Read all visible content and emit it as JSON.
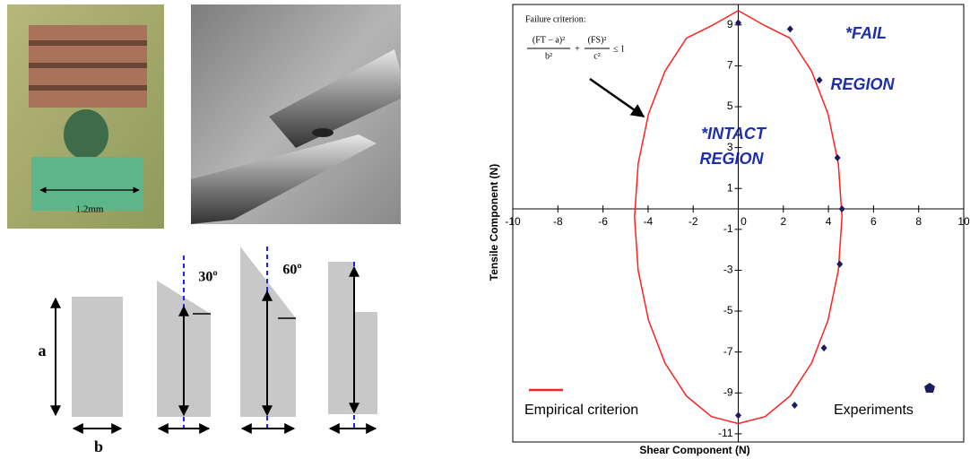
{
  "figure_labels": {
    "scale": "1.2mm",
    "height": "a",
    "width": "b",
    "angle_1": "30º",
    "angle_2": "60º"
  },
  "chart_data": {
    "type": "scatter",
    "xlabel": "Shear Component (N)",
    "ylabel": "Tensile Component (N)",
    "xlim": [
      -10,
      10
    ],
    "ylim": [
      -11.4,
      10
    ],
    "xticks": [
      -10,
      -8,
      -6,
      -4,
      -2,
      0,
      2,
      4,
      6,
      8,
      10
    ],
    "yticks": [
      9,
      7,
      5,
      3,
      1,
      -1,
      -3,
      -5,
      -7,
      -9,
      -11
    ],
    "annotations": {
      "criterion_title": "Failure criterion:",
      "term_1_numerator": "(FT − a)²",
      "term_1_denominator": "b²",
      "plus": "+",
      "term_2_numerator": "(FS)²",
      "term_2_denominator": "c²",
      "bound": "≤ 1",
      "intact_line_1": "*INTACT",
      "intact_line_2": "REGION",
      "fail_line_1": "*FAIL",
      "fail_line_2": "REGION"
    },
    "series": [
      {
        "name": "Empirical criterion",
        "color": "#ff2020",
        "mode": "line",
        "x": [
          0,
          1.19,
          2.3,
          3.25,
          3.98,
          4.44,
          4.6,
          4.44,
          3.98,
          3.25,
          2.3,
          1.19,
          0,
          -1.19,
          -2.3,
          -3.25,
          -3.98,
          -4.44,
          -4.6,
          -4.44,
          -3.98,
          -3.25,
          -2.3,
          -1.19,
          0
        ],
        "y": [
          9.7,
          8.96,
          8.35,
          6.74,
          4.65,
          2.21,
          -0.4,
          -3.01,
          -5.45,
          -7.54,
          -9.15,
          -10.16,
          -10.5,
          -10.16,
          -9.15,
          -7.54,
          -5.45,
          -3.01,
          -0.4,
          2.21,
          4.65,
          6.74,
          8.35,
          8.96,
          9.7
        ]
      },
      {
        "name": "Experiments",
        "color": "#1a1a5e",
        "mode": "markers",
        "x": [
          0,
          2.3,
          3.6,
          4.4,
          4.6,
          4.5,
          3.8,
          2.5,
          0
        ],
        "y": [
          9.1,
          8.8,
          6.3,
          2.5,
          0,
          -2.7,
          -6.8,
          -9.6,
          -10.1
        ]
      }
    ]
  }
}
